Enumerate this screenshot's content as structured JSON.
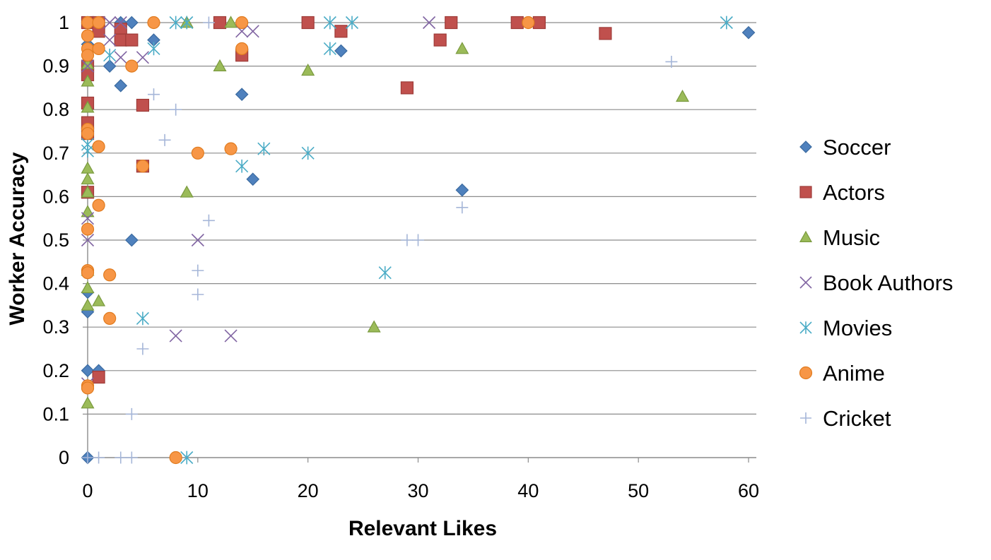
{
  "chart_data": {
    "type": "scatter",
    "title": "",
    "xlabel": "Relevant Likes",
    "ylabel": "Worker Accuracy",
    "xlim": [
      0,
      60
    ],
    "ylim": [
      0,
      1
    ],
    "xticks": [
      "0",
      "10",
      "20",
      "30",
      "40",
      "50",
      "60"
    ],
    "yticks": [
      "0",
      "0.1",
      "0.2",
      "0.3",
      "0.4",
      "0.5",
      "0.6",
      "0.7",
      "0.8",
      "0.9",
      "1"
    ],
    "grid": "horizontal",
    "legend_position": "right",
    "series": [
      {
        "name": "Soccer",
        "marker": "diamond",
        "color": "#4F81BD",
        "stroke": "#3A6AA0",
        "points": [
          [
            0,
            1
          ],
          [
            0,
            0.95
          ],
          [
            0,
            0.9
          ],
          [
            0,
            0.75
          ],
          [
            0,
            0.38
          ],
          [
            0,
            0.335
          ],
          [
            0,
            0.2
          ],
          [
            0,
            0
          ],
          [
            1,
            0.2
          ],
          [
            2,
            0.9
          ],
          [
            3,
            0.855
          ],
          [
            3,
            1
          ],
          [
            4,
            1
          ],
          [
            4,
            0.5
          ],
          [
            6,
            0.96
          ],
          [
            14,
            0.835
          ],
          [
            15,
            0.64
          ],
          [
            23,
            0.935
          ],
          [
            34,
            0.615
          ],
          [
            60,
            0.977
          ]
        ]
      },
      {
        "name": "Actors",
        "marker": "square",
        "color": "#C0504D",
        "stroke": "#9E3B38",
        "points": [
          [
            0,
            1
          ],
          [
            0,
            0.9
          ],
          [
            0,
            0.88
          ],
          [
            0,
            0.815
          ],
          [
            0,
            0.77
          ],
          [
            0,
            0.745
          ],
          [
            0,
            0.61
          ],
          [
            1,
            1
          ],
          [
            1,
            0.98
          ],
          [
            1,
            0.185
          ],
          [
            3,
            0.985
          ],
          [
            3,
            0.96
          ],
          [
            4,
            0.96
          ],
          [
            5,
            0.81
          ],
          [
            5,
            0.67
          ],
          [
            12,
            1
          ],
          [
            14,
            0.925
          ],
          [
            20,
            1
          ],
          [
            23,
            0.98
          ],
          [
            29,
            0.85
          ],
          [
            32,
            0.96
          ],
          [
            33,
            1
          ],
          [
            39,
            1
          ],
          [
            41,
            1
          ],
          [
            47,
            0.975
          ]
        ]
      },
      {
        "name": "Music",
        "marker": "triangle",
        "color": "#9BBB59",
        "stroke": "#7A9A3E",
        "points": [
          [
            0,
            0.905
          ],
          [
            0,
            0.865
          ],
          [
            0,
            0.805
          ],
          [
            0,
            0.665
          ],
          [
            0,
            0.64
          ],
          [
            0,
            0.61
          ],
          [
            0,
            0.565
          ],
          [
            0,
            0.43
          ],
          [
            0,
            0.39
          ],
          [
            0,
            0.35
          ],
          [
            0,
            0.125
          ],
          [
            1,
            0.36
          ],
          [
            9,
            1
          ],
          [
            9,
            0.61
          ],
          [
            12,
            0.9
          ],
          [
            13,
            1
          ],
          [
            20,
            0.89
          ],
          [
            26,
            0.3
          ],
          [
            34,
            0.94
          ],
          [
            54,
            0.83
          ]
        ]
      },
      {
        "name": "Book Authors",
        "marker": "x",
        "color": "#8064A2",
        "stroke": "#8064A2",
        "points": [
          [
            0,
            0.9
          ],
          [
            0,
            0.55
          ],
          [
            0,
            0.5
          ],
          [
            0,
            0.17
          ],
          [
            2,
            1
          ],
          [
            2,
            0.96
          ],
          [
            3,
            1
          ],
          [
            3,
            0.92
          ],
          [
            5,
            0.92
          ],
          [
            8,
            0.28
          ],
          [
            10,
            0.5
          ],
          [
            13,
            0.28
          ],
          [
            14,
            0.98
          ],
          [
            15,
            0.98
          ],
          [
            31,
            1
          ]
        ]
      },
      {
        "name": "Movies",
        "marker": "asterisk",
        "color": "#4BACC6",
        "stroke": "#4BACC6",
        "points": [
          [
            0,
            0.72
          ],
          [
            0,
            0.705
          ],
          [
            2,
            0.925
          ],
          [
            5,
            0.32
          ],
          [
            6,
            0.94
          ],
          [
            8,
            1
          ],
          [
            9,
            1
          ],
          [
            9,
            0
          ],
          [
            14,
            0.67
          ],
          [
            16,
            0.71
          ],
          [
            20,
            0.7
          ],
          [
            22,
            1
          ],
          [
            22,
            0.94
          ],
          [
            24,
            1
          ],
          [
            27,
            0.425
          ],
          [
            58,
            1
          ]
        ]
      },
      {
        "name": "Anime",
        "marker": "circle",
        "color": "#F79646",
        "stroke": "#E07B1F",
        "points": [
          [
            0,
            1
          ],
          [
            0,
            0.97
          ],
          [
            0,
            0.94
          ],
          [
            0,
            0.925
          ],
          [
            0,
            0.755
          ],
          [
            0,
            0.745
          ],
          [
            0,
            0.525
          ],
          [
            0,
            0.43
          ],
          [
            0,
            0.425
          ],
          [
            0,
            0.165
          ],
          [
            0,
            0.16
          ],
          [
            1,
            1
          ],
          [
            1,
            0.94
          ],
          [
            1,
            0.715
          ],
          [
            1,
            0.58
          ],
          [
            2,
            0.42
          ],
          [
            2,
            0.32
          ],
          [
            4,
            0.9
          ],
          [
            5,
            0.67
          ],
          [
            6,
            1
          ],
          [
            8,
            0
          ],
          [
            10,
            0.7
          ],
          [
            13,
            0.71
          ],
          [
            14,
            1
          ],
          [
            14,
            0.94
          ],
          [
            40,
            1
          ]
        ]
      },
      {
        "name": "Cricket",
        "marker": "plus",
        "color": "#A5B6D8",
        "stroke": "#A5B6D8",
        "points": [
          [
            0,
            0
          ],
          [
            1,
            0
          ],
          [
            3,
            0
          ],
          [
            4,
            0
          ],
          [
            4,
            0.1
          ],
          [
            5,
            0.25
          ],
          [
            6,
            0.835
          ],
          [
            7,
            0.73
          ],
          [
            8,
            0.8
          ],
          [
            10,
            0.43
          ],
          [
            10,
            0.375
          ],
          [
            11,
            1
          ],
          [
            11,
            0.545
          ],
          [
            29,
            0.5
          ],
          [
            30,
            0.5
          ],
          [
            34,
            0.575
          ],
          [
            53,
            0.91
          ]
        ]
      }
    ]
  }
}
